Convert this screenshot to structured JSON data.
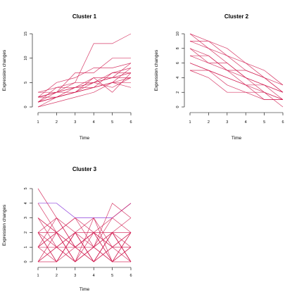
{
  "figure": {
    "colors": {
      "cluster1": "#d0194e",
      "cluster2": "#d0194e",
      "cluster3": "#d0194e",
      "cluster3_alt": "#7a1fd6",
      "axis": "#000000",
      "background": "#ffffff"
    }
  },
  "chart_data": [
    {
      "type": "line",
      "title": "Cluster 1",
      "xlabel": "Time",
      "ylabel": "Expression changes",
      "x": [
        1,
        2,
        3,
        4,
        5,
        6
      ],
      "xlim": [
        1,
        6
      ],
      "ylim": [
        0,
        15
      ],
      "xticks": [
        "1",
        "2",
        "3",
        "4",
        "5",
        "6"
      ],
      "yticks": [
        "0",
        "5",
        "10",
        "15"
      ],
      "series": [
        {
          "values": [
            1,
            2,
            3,
            6,
            6,
            7
          ]
        },
        {
          "values": [
            2,
            3,
            3,
            4,
            5,
            6
          ]
        },
        {
          "values": [
            0,
            1,
            2,
            3,
            5,
            8
          ]
        },
        {
          "values": [
            1,
            2,
            4,
            5,
            6,
            6
          ]
        },
        {
          "values": [
            2,
            3,
            5,
            13,
            13,
            15
          ]
        },
        {
          "values": [
            3,
            3,
            4,
            5,
            7,
            8
          ]
        },
        {
          "values": [
            1,
            3,
            4,
            4,
            5,
            5
          ]
        },
        {
          "values": [
            2,
            5,
            6,
            8,
            8,
            9
          ]
        },
        {
          "values": [
            0,
            2,
            3,
            4,
            7,
            7
          ]
        },
        {
          "values": [
            1,
            4,
            5,
            5,
            4,
            6
          ]
        },
        {
          "values": [
            2,
            3,
            7,
            7,
            10,
            10
          ]
        },
        {
          "values": [
            1,
            2,
            3,
            5,
            6,
            9
          ]
        },
        {
          "values": [
            3,
            4,
            4,
            6,
            3,
            7
          ]
        },
        {
          "values": [
            2,
            2,
            3,
            4,
            5,
            4
          ]
        }
      ]
    },
    {
      "type": "line",
      "title": "Cluster 2",
      "xlabel": "Time",
      "ylabel": "Expression changes",
      "x": [
        1,
        2,
        3,
        4,
        5,
        6
      ],
      "xlim": [
        1,
        6
      ],
      "ylim": [
        0,
        10
      ],
      "xticks": [
        "1",
        "2",
        "3",
        "4",
        "5",
        "6"
      ],
      "yticks": [
        "0",
        "2",
        "4",
        "6",
        "8",
        "10"
      ],
      "series": [
        {
          "values": [
            10,
            9,
            8,
            6,
            5,
            3
          ]
        },
        {
          "values": [
            9,
            9,
            7,
            5,
            4,
            2
          ]
        },
        {
          "values": [
            8,
            7,
            5,
            4,
            2,
            1
          ]
        },
        {
          "values": [
            7,
            6,
            5,
            3,
            2,
            0
          ]
        },
        {
          "values": [
            6,
            5,
            3,
            2,
            2,
            1
          ]
        },
        {
          "values": [
            5,
            4,
            2,
            2,
            1,
            1
          ]
        },
        {
          "values": [
            9,
            8,
            7,
            6,
            4,
            3
          ]
        },
        {
          "values": [
            8,
            6,
            6,
            4,
            3,
            2
          ]
        },
        {
          "values": [
            7,
            7,
            5,
            5,
            4,
            2
          ]
        },
        {
          "values": [
            6,
            5,
            4,
            3,
            3,
            1
          ]
        },
        {
          "values": [
            10,
            8,
            6,
            4,
            3,
            2
          ]
        },
        {
          "values": [
            5,
            5,
            4,
            3,
            1,
            1
          ]
        }
      ]
    },
    {
      "type": "line",
      "title": "Cluster 3",
      "xlabel": "Time",
      "ylabel": "Expression changes",
      "x": [
        1,
        2,
        3,
        4,
        5,
        6
      ],
      "xlim": [
        1,
        6
      ],
      "ylim": [
        0,
        5
      ],
      "xticks": [
        "1",
        "2",
        "3",
        "4",
        "5",
        "6"
      ],
      "yticks": [
        "0",
        "1",
        "2",
        "3",
        "4",
        "5"
      ],
      "series": [
        {
          "values": [
            5,
            3,
            1,
            2,
            0,
            2
          ]
        },
        {
          "values": [
            4,
            4,
            3,
            3,
            3,
            4
          ],
          "alt": true
        },
        {
          "values": [
            3,
            2,
            0,
            1,
            2,
            3
          ]
        },
        {
          "values": [
            2,
            0,
            2,
            0,
            1,
            0
          ]
        },
        {
          "values": [
            1,
            2,
            1,
            2,
            0,
            2
          ]
        },
        {
          "values": [
            0,
            1,
            2,
            0,
            2,
            1
          ]
        },
        {
          "values": [
            2,
            1,
            0,
            2,
            1,
            2
          ]
        },
        {
          "values": [
            1,
            0,
            2,
            1,
            2,
            0
          ]
        },
        {
          "values": [
            3,
            1,
            2,
            3,
            0,
            1
          ]
        },
        {
          "values": [
            0,
            2,
            1,
            0,
            1,
            2
          ]
        },
        {
          "values": [
            2,
            2,
            0,
            1,
            0,
            1
          ]
        },
        {
          "values": [
            4,
            2,
            3,
            1,
            4,
            3
          ]
        },
        {
          "values": [
            1,
            1,
            1,
            2,
            2,
            0
          ]
        },
        {
          "values": [
            0,
            0,
            2,
            2,
            1,
            1
          ]
        },
        {
          "values": [
            2,
            3,
            2,
            0,
            2,
            2
          ]
        },
        {
          "values": [
            3,
            2,
            3,
            2,
            3,
            4
          ]
        },
        {
          "values": [
            1,
            2,
            0,
            3,
            1,
            1
          ]
        },
        {
          "values": [
            0,
            1,
            0,
            1,
            0,
            0
          ]
        },
        {
          "values": [
            2,
            0,
            1,
            0,
            2,
            0
          ]
        },
        {
          "values": [
            1,
            3,
            1,
            1,
            3,
            2
          ]
        }
      ]
    }
  ]
}
